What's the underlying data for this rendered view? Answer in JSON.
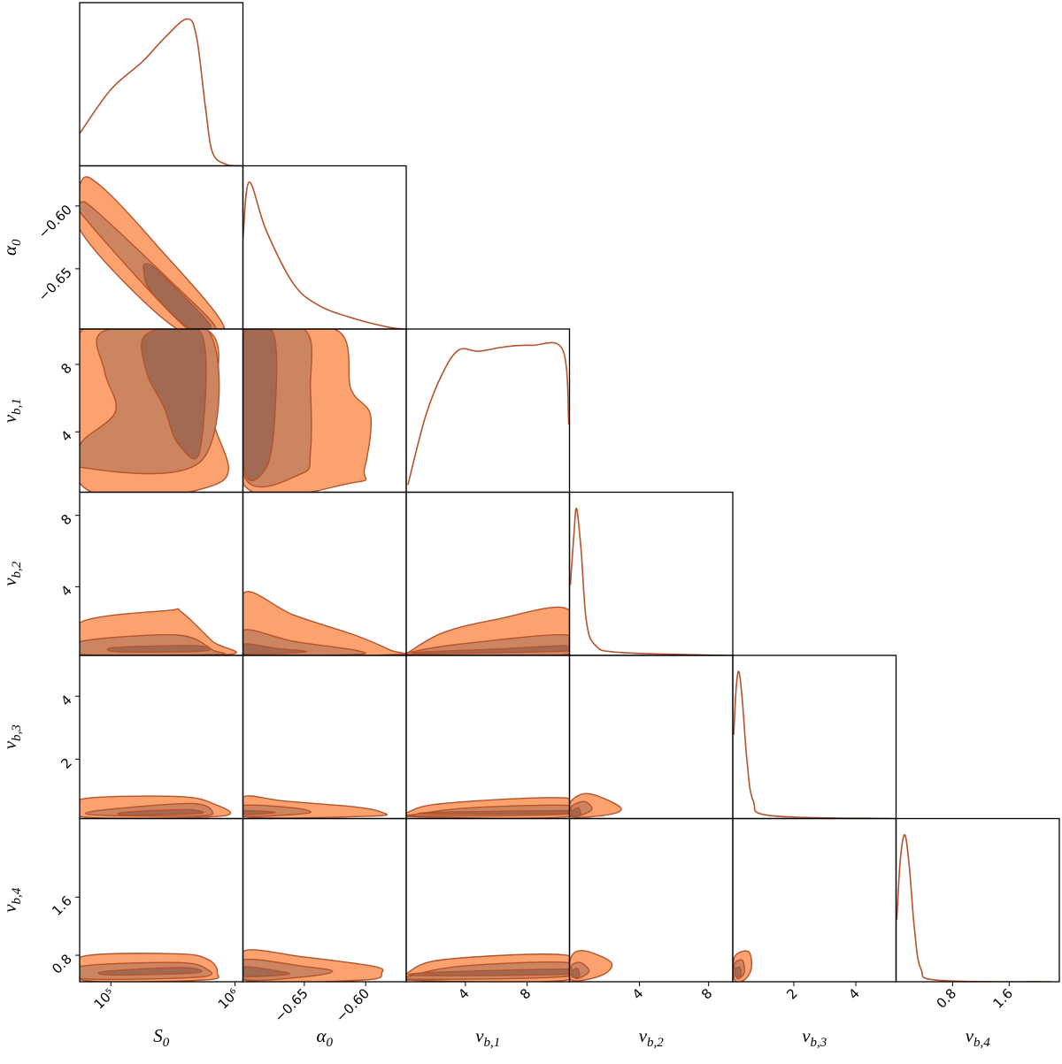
{
  "chart_data": {
    "type": "corner",
    "line_color": "#b5532c",
    "contour_colors": [
      "#fca26f",
      "#cd8561",
      "#a26953"
    ],
    "parameters": [
      {
        "symbol": "S",
        "subscript": "0",
        "scale": "log",
        "xlim": [
          56000,
          1160000
        ],
        "xticks": [
          {
            "value": 100000,
            "label": "10⁵"
          },
          {
            "value": 1000000,
            "label": "10⁶"
          }
        ]
      },
      {
        "symbol": "α",
        "subscript": "0",
        "xlim": [
          -0.7,
          -0.567
        ],
        "xticks": [
          {
            "value": -0.65,
            "label": "−0.65"
          },
          {
            "value": -0.6,
            "label": "−0.60"
          }
        ],
        "ylim": [
          -0.698,
          -0.568
        ],
        "yticks": [
          {
            "value": -0.65,
            "label": "−0.65"
          },
          {
            "value": -0.6,
            "label": "−0.60"
          }
        ]
      },
      {
        "symbol": "ν",
        "subscript": "b,1",
        "xlim": [
          0.17,
          10.74
        ],
        "xticks": [
          4,
          8
        ],
        "ylim": [
          0.42,
          10.1
        ],
        "yticks": [
          4,
          8
        ]
      },
      {
        "symbol": "ν",
        "subscript": "b,2",
        "xlim": [
          -0.05,
          9.4
        ],
        "xticks": [
          4,
          8
        ],
        "ylim": [
          0.15,
          9.3
        ],
        "yticks": [
          4,
          8
        ]
      },
      {
        "symbol": "ν",
        "subscript": "b,3",
        "xlim": [
          0.03,
          5.3
        ],
        "xticks": [
          2,
          4
        ],
        "ylim": [
          0.11,
          5.3
        ],
        "yticks": [
          2,
          4
        ]
      },
      {
        "symbol": "ν",
        "subscript": "b,4",
        "xlim": [
          0,
          2.31
        ],
        "xticks": [
          0.8,
          1.6
        ],
        "ylim": [
          0.436,
          2.68
        ],
        "yticks": [
          0.8,
          1.6
        ]
      }
    ],
    "marginals": [
      {
        "x": [
          56000,
          100000,
          180000,
          270000,
          410000,
          490000,
          580000,
          660000,
          850000,
          1090000
        ],
        "density": [
          0.22,
          0.52,
          0.71,
          0.87,
          1.0,
          0.88,
          0.39,
          0.09,
          0.01,
          0
        ]
      },
      {
        "x": [
          -0.7,
          -0.695,
          -0.681,
          -0.659,
          -0.638,
          -0.609,
          -0.58,
          -0.569
        ],
        "density": [
          0.61,
          1.0,
          0.67,
          0.31,
          0.16,
          0.07,
          0.01,
          0
        ]
      },
      {
        "x": [
          0.28,
          1.43,
          2.57,
          3.6,
          4.86,
          6.57,
          8.3,
          10.3,
          10.7
        ],
        "density": [
          0.05,
          0.52,
          0.82,
          0.97,
          0.96,
          0.99,
          1.0,
          0.97,
          0.46
        ]
      },
      {
        "x": [
          0.0,
          0.21,
          0.36,
          0.62,
          0.92,
          1.44,
          2.87,
          9.0
        ],
        "density": [
          0.48,
          0.83,
          1.0,
          0.72,
          0.24,
          0.07,
          0.02,
          0
        ]
      },
      {
        "x": [
          0.06,
          0.14,
          0.23,
          0.34,
          0.49,
          0.69,
          1.26,
          5.1
        ],
        "density": [
          0.57,
          0.89,
          1.0,
          0.8,
          0.39,
          0.12,
          0.02,
          0
        ]
      },
      {
        "x": [
          0.01,
          0.06,
          0.125,
          0.19,
          0.26,
          0.35,
          0.6,
          2.2
        ],
        "density": [
          0.42,
          0.83,
          1.0,
          0.77,
          0.36,
          0.09,
          0.01,
          0
        ]
      }
    ],
    "contours": [
      [
        [
          {
            "x": [
              58000,
              85000,
              228000,
              820000,
              330000,
              58000
            ],
            "y": [
              -0.58,
              -0.585,
              -0.63,
              -0.697,
              -0.697,
              -0.621
            ]
          },
          {
            "x": [
              58000,
              78000,
              290000,
              700000,
              405000,
              61000
            ],
            "y": [
              -0.597,
              -0.605,
              -0.658,
              -0.697,
              -0.697,
              -0.609
            ]
          },
          {
            "x": [
              193000,
              247000,
              630000,
              425000,
              210000,
              184000
            ],
            "y": [
              -0.646,
              -0.653,
              -0.695,
              -0.697,
              -0.668,
              -0.651
            ]
          }
        ]
      ],
      [
        [
          {
            "x": [
              58000,
              610000,
              660000,
              760000,
              58000
            ],
            "y": [
              10.0,
              10.0,
              4.95,
              1.0,
              0.84
            ]
          },
          {
            "x": [
              89000,
              610000,
              540000,
              58000,
              58000,
              109000,
              89000
            ],
            "y": [
              10.0,
              10.0,
              2.31,
              1.89,
              3.37,
              5.21,
              7.58
            ]
          },
          {
            "x": [
              193000,
              540000,
              520000,
              343000,
              268000,
              193000
            ],
            "y": [
              9.79,
              9.79,
              2.84,
              3.37,
              5.47,
              7.58
            ]
          }
        ],
        [
          {
            "x": [
              -0.699,
              -0.623,
              -0.612,
              -0.596,
              -0.601,
              -0.609,
              -0.699
            ],
            "y": [
              10.0,
              10.0,
              6.53,
              4.95,
              1.79,
              1.0,
              0.84
            ]
          },
          {
            "x": [
              -0.699,
              -0.649,
              -0.645,
              -0.645,
              -0.652,
              -0.699
            ],
            "y": [
              10.0,
              10.0,
              6.53,
              2.84,
              1.53,
              1.37
            ]
          },
          {
            "x": [
              -0.699,
              -0.675,
              -0.674,
              -0.681,
              -0.699
            ],
            "y": [
              9.79,
              9.79,
              4.95,
              1.89,
              1.79
            ]
          }
        ]
      ],
      [
        [
          {
            "x": [
              58000,
              290000,
              373000,
              660000,
              890000,
              58000
            ],
            "y": [
              2.03,
              2.67,
              2.57,
              0.94,
              0.2,
              0.2
            ]
          },
          {
            "x": [
              58000,
              343000,
              660000,
              685000,
              58000
            ],
            "y": [
              0.94,
              1.29,
              0.45,
              0.2,
              0.2
            ]
          },
          {
            "x": [
              109000,
              477000,
              560000,
              118000
            ],
            "y": [
              0.59,
              0.69,
              0.4,
              0.35
            ]
          }
        ],
        [
          {
            "x": [
              -0.699,
              -0.659,
              -0.609,
              -0.58,
              -0.576,
              -0.699
            ],
            "y": [
              3.66,
              2.42,
              1.29,
              0.45,
              0.2,
              0.2
            ]
          },
          {
            "x": [
              -0.699,
              -0.659,
              -0.609,
              -0.609,
              -0.699
            ],
            "y": [
              1.58,
              0.94,
              0.45,
              0.2,
              0.2
            ]
          },
          {
            "x": [
              -0.699,
              -0.674,
              -0.649,
              -0.699
            ],
            "y": [
              0.79,
              0.55,
              0.35,
              0.25
            ]
          }
        ],
        [
          {
            "x": [
              0.28,
              2.57,
              6.0,
              10.57,
              10.63,
              0.28
            ],
            "y": [
              0.3,
              1.43,
              2.17,
              2.77,
              0.2,
              0.2
            ]
          },
          {
            "x": [
              0.57,
              3.71,
              10.57,
              10.57,
              0.57
            ],
            "y": [
              0.35,
              0.79,
              1.29,
              0.2,
              0.2
            ]
          },
          {
            "x": [
              1.43,
              6.0,
              10.57,
              10.57,
              1.43
            ],
            "y": [
              0.35,
              0.5,
              0.69,
              0.4,
              0.25
            ]
          }
        ]
      ],
      [
        [
          {
            "x": [
              58000,
              343000,
              660000,
              780000,
              58000
            ],
            "y": [
              0.73,
              0.81,
              0.59,
              0.19,
              0.17
            ]
          },
          {
            "x": [
              78000,
              440000,
              660000,
              477000,
              78000
            ],
            "y": [
              0.36,
              0.59,
              0.31,
              0.19,
              0.22
            ]
          },
          {
            "x": [
              128000,
              405000,
              520000,
              139000
            ],
            "y": [
              0.31,
              0.39,
              0.28,
              0.22
            ]
          }
        ],
        [
          {
            "x": [
              -0.699,
              -0.667,
              -0.609,
              -0.587,
              -0.594,
              -0.699
            ],
            "y": [
              0.81,
              0.67,
              0.48,
              0.31,
              0.19,
              0.17
            ]
          },
          {
            "x": [
              -0.699,
              -0.659,
              -0.645,
              -0.667,
              -0.699
            ],
            "y": [
              0.53,
              0.45,
              0.31,
              0.22,
              0.19
            ]
          },
          {
            "x": [
              -0.699,
              -0.674,
              -0.688,
              -0.699
            ],
            "y": [
              0.36,
              0.31,
              0.25,
              0.25
            ]
          }
        ],
        [
          {
            "x": [
              0.28,
              2.57,
              10.57,
              10.57,
              0.28
            ],
            "y": [
              0.31,
              0.59,
              0.76,
              0.17,
              0.17
            ]
          },
          {
            "x": [
              0.86,
              4.28,
              10.57,
              10.57,
              0.86
            ],
            "y": [
              0.25,
              0.45,
              0.53,
              0.25,
              0.19
            ]
          },
          {
            "x": [
              2.0,
              10.57,
              10.57,
              2.0
            ],
            "y": [
              0.31,
              0.36,
              0.28,
              0.25
            ]
          }
        ],
        [
          {
            "x": [
              0.05,
              1.08,
              2.87,
              2.36,
              0.05
            ],
            "y": [
              0.67,
              0.9,
              0.48,
              0.25,
              0.17
            ]
          },
          {
            "x": [
              0.05,
              0.82,
              1.23,
              0.31
            ],
            "y": [
              0.48,
              0.65,
              0.39,
              0.19
            ]
          },
          {
            "x": [
              0.1,
              0.46,
              0.57,
              0.1
            ],
            "y": [
              0.34,
              0.45,
              0.22,
              0.19
            ]
          }
        ]
      ],
      [
        [
          {
            "x": [
              58000,
              343000,
              610000,
              720000,
              560000,
              58000
            ],
            "y": [
              0.78,
              0.82,
              0.74,
              0.56,
              0.46,
              0.46
            ]
          },
          {
            "x": [
              58000,
              343000,
              580000,
              520000,
              58000
            ],
            "y": [
              0.65,
              0.7,
              0.62,
              0.5,
              0.48
            ]
          },
          {
            "x": [
              92000,
              373000,
              493000,
              100000
            ],
            "y": [
              0.58,
              0.63,
              0.56,
              0.53
            ]
          }
        ],
        [
          {
            "x": [
              -0.699,
              -0.652,
              -0.594,
              -0.587,
              -0.601,
              -0.699
            ],
            "y": [
              0.86,
              0.78,
              0.65,
              0.56,
              0.46,
              0.46
            ]
          },
          {
            "x": [
              -0.699,
              -0.652,
              -0.627,
              -0.652,
              -0.699
            ],
            "y": [
              0.74,
              0.65,
              0.58,
              0.5,
              0.47
            ]
          },
          {
            "x": [
              -0.699,
              -0.674,
              -0.663,
              -0.699
            ],
            "y": [
              0.64,
              0.59,
              0.54,
              0.51
            ]
          }
        ],
        [
          {
            "x": [
              0.28,
              2.57,
              10.57,
              10.57,
              0.28
            ],
            "y": [
              0.56,
              0.74,
              0.8,
              0.46,
              0.46
            ]
          },
          {
            "x": [
              0.57,
              3.71,
              10.57,
              10.57,
              0.86
            ],
            "y": [
              0.52,
              0.65,
              0.7,
              0.51,
              0.47
            ]
          },
          {
            "x": [
              1.43,
              10.57,
              10.57,
              1.43
            ],
            "y": [
              0.56,
              0.61,
              0.54,
              0.52
            ]
          }
        ],
        [
          {
            "x": [
              0.05,
              0.82,
              2.36,
              1.85,
              0.05
            ],
            "y": [
              0.78,
              0.86,
              0.7,
              0.53,
              0.46
            ]
          },
          {
            "x": [
              0.05,
              0.57,
              1.08,
              0.31
            ],
            "y": [
              0.65,
              0.7,
              0.58,
              0.48
            ]
          },
          {
            "x": [
              0.1,
              0.41,
              0.51,
              0.1
            ],
            "y": [
              0.58,
              0.62,
              0.51,
              0.5
            ]
          }
        ],
        [
          {
            "x": [
              0.09,
              0.54,
              0.63,
              0.4,
              0.09
            ],
            "y": [
              0.78,
              0.85,
              0.62,
              0.46,
              0.46
            ]
          },
          {
            "x": [
              0.09,
              0.34,
              0.4,
              0.17
            ],
            "y": [
              0.68,
              0.73,
              0.56,
              0.48
            ]
          },
          {
            "x": [
              0.12,
              0.26,
              0.29,
              0.12
            ],
            "y": [
              0.61,
              0.63,
              0.52,
              0.51
            ]
          }
        ]
      ]
    ]
  }
}
